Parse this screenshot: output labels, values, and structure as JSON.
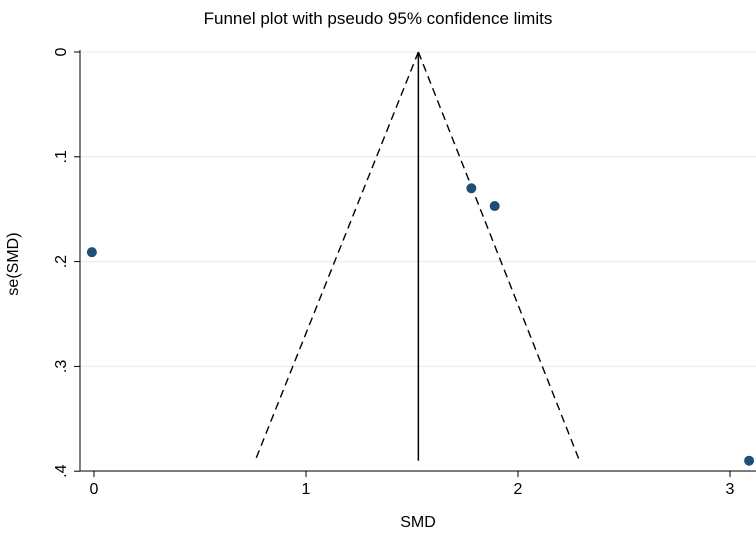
{
  "chart_data": {
    "type": "scatter",
    "title": "Funnel plot with pseudo 95% confidence limits",
    "xlabel": "SMD",
    "ylabel": "se(SMD)",
    "xlim": [
      -0.05,
      3.1
    ],
    "ylim": [
      0,
      0.4
    ],
    "y_reversed": true,
    "x_ticks": [
      0,
      1,
      2,
      3
    ],
    "x_tick_labels": [
      "0",
      "1",
      "2",
      "3"
    ],
    "y_ticks": [
      0,
      0.1,
      0.2,
      0.3,
      0.4
    ],
    "y_tick_labels": [
      "0",
      ".1",
      ".2",
      ".3",
      ".4"
    ],
    "grid": "horizontal",
    "pooled_estimate": 1.53,
    "funnel_limits": {
      "se_max": 0.39,
      "lower_x_at_se_max": 0.76,
      "upper_x_at_se_max": 2.29
    },
    "points": [
      {
        "x": -0.01,
        "y": 0.191
      },
      {
        "x": 1.78,
        "y": 0.13
      },
      {
        "x": 1.89,
        "y": 0.147
      },
      {
        "x": 3.09,
        "y": 0.39
      }
    ],
    "colors": {
      "point": "#1f4e79",
      "grid": "#e8e8e8",
      "axis": "#000000"
    }
  }
}
